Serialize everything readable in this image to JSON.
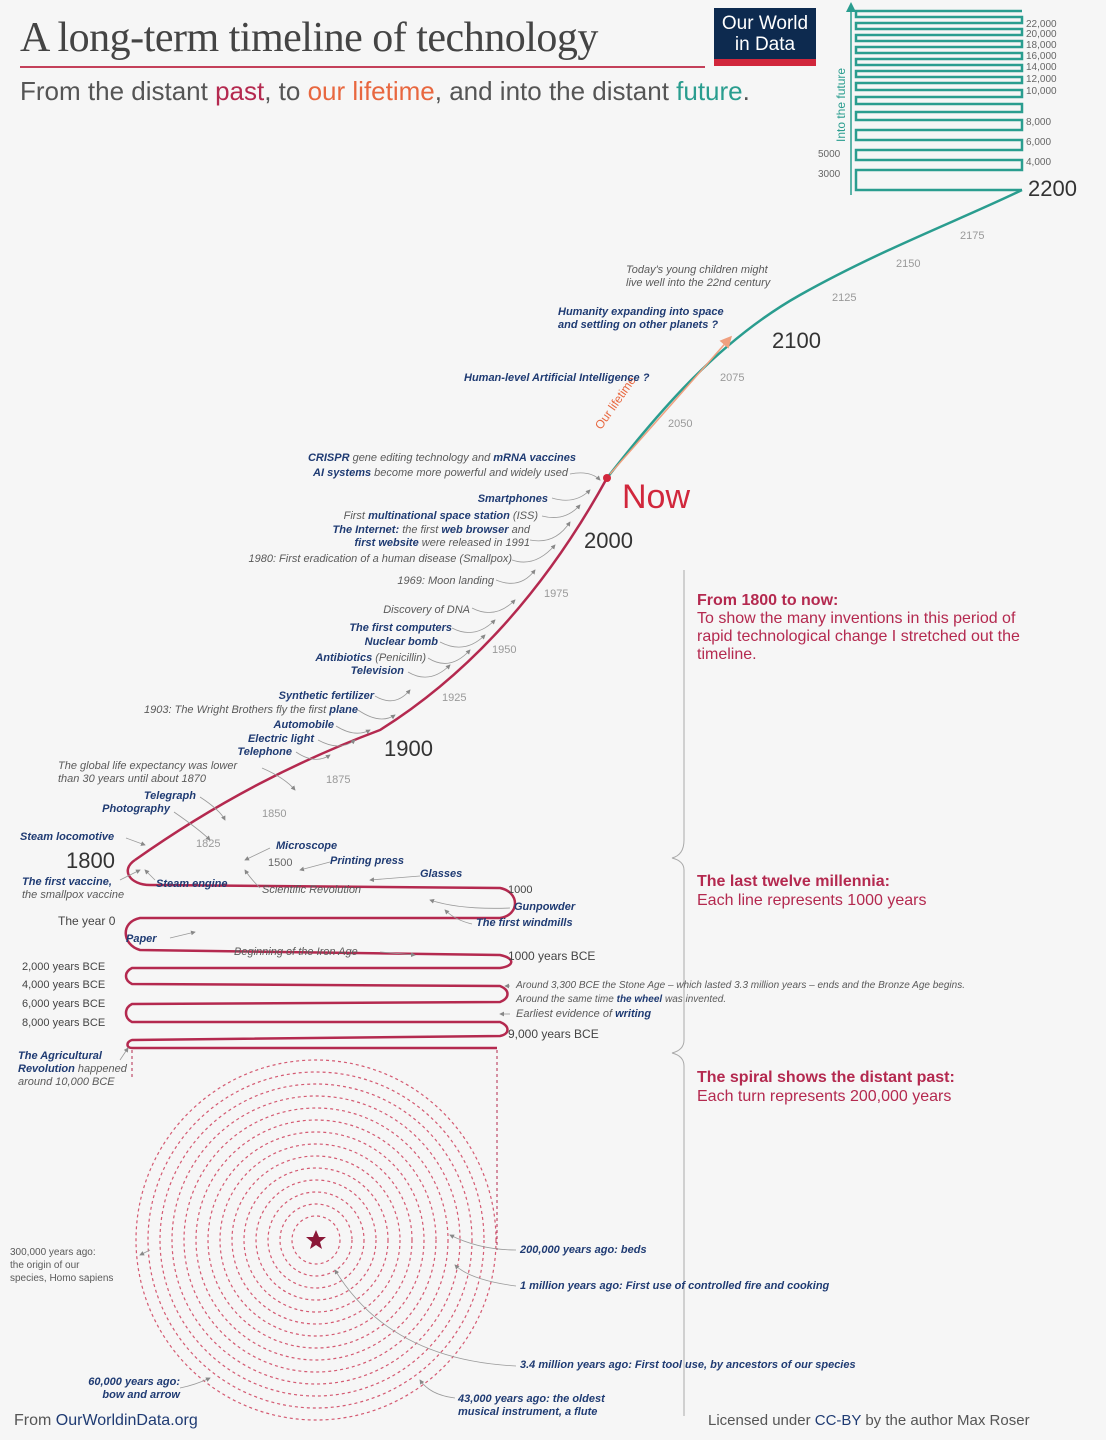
{
  "header": {
    "title": "A long-term timeline of technology",
    "subtitle_parts": [
      "From the distant ",
      "past",
      ", to ",
      "our lifetime",
      ", and into the distant ",
      "future",
      "."
    ],
    "logo_line1": "Our World",
    "logo_line2": "in Data"
  },
  "colors": {
    "past": "#b4294f",
    "lifetime": "#e8673f",
    "future": "#2a9d8f",
    "navy": "#1f3b73",
    "logo_bg": "#0d2a4f",
    "logo_red": "#d1273c"
  },
  "markers": {
    "now": "Now",
    "our_lifetime": "Our lifetime",
    "into_future": "Into the future",
    "y1800": "1800",
    "y1900": "1900",
    "y2000": "2000",
    "y2100": "2100",
    "y2200": "2200",
    "y1825": "1825",
    "y1850": "1850",
    "y1875": "1875",
    "y1925": "1925",
    "y1950": "1950",
    "y1975": "1975",
    "y2050": "2050",
    "y2075": "2075",
    "y2125": "2125",
    "y2150": "2150",
    "y2175": "2175",
    "y1500": "1500",
    "y3000": "3000",
    "y5000": "5000"
  },
  "future_scale": [
    "22,000",
    "20,000",
    "18,000",
    "16,000",
    "14,000",
    "12,000",
    "10,000",
    "8,000",
    "6,000",
    "4,000"
  ],
  "events": {
    "kids": [
      "Today's young children might",
      "live well into the 22nd century"
    ],
    "space": [
      "Humanity expanding into space",
      "and settling on other planets ?"
    ],
    "ai_human": "Human-level Artificial Intelligence ?",
    "crispr_a": "CRISPR",
    "crispr_b": " gene editing technology and ",
    "crispr_c": "mRNA vaccines",
    "ai_sys_a": "AI systems",
    "ai_sys_b": " become more powerful and widely used",
    "smartphones": "Smartphones",
    "iss_a": "First ",
    "iss_b": "multinational space station",
    "iss_c": " (ISS)",
    "internet_a": "The Internet:",
    "internet_b": " the first ",
    "internet_c": "web browser",
    "internet_d": " and",
    "internet_e": "first website",
    "internet_f": " were released in 1991",
    "smallpox_erad": "1980: First eradication of a human disease (Smallpox)",
    "moon": "1969: Moon landing",
    "dna": "Discovery of DNA",
    "computers": "The first computers",
    "nuclear": "Nuclear bomb",
    "antibiotics_a": "Antibiotics",
    "antibiotics_b": " (Penicillin)",
    "television": "Television",
    "fertilizer": "Synthetic fertilizer",
    "wright_a": "1903: The Wright Brothers fly the first ",
    "wright_b": "plane",
    "automobile": "Automobile",
    "electric": "Electric light",
    "telephone": "Telephone",
    "life_exp": [
      "The global life expectancy was lower",
      "than 30 years until about 1870"
    ],
    "telegraph": "Telegraph",
    "photography": "Photography",
    "steam_loco": "Steam locomotive",
    "vaccine_a": "The first vaccine,",
    "vaccine_b": "the smallpox vaccine",
    "steam_engine": "Steam engine",
    "microscope": "Microscope",
    "printing": "Printing press",
    "glasses": "Glasses",
    "sci_rev": "Scientific Revolution",
    "y1000": "1000",
    "gunpowder": "Gunpowder",
    "windmills": "The first windmills",
    "year0": "The year 0",
    "paper": "Paper",
    "iron_age": "Beginning of the Iron Age",
    "bce1000": "1000 years BCE",
    "bce2000": "2,000 years BCE",
    "bce4000": "4,000 years BCE",
    "bce6000": "6,000 years BCE",
    "bce8000": "8,000 years BCE",
    "bronze_a": "Around 3,300 BCE the Stone Age – which lasted 3.3 million years – ends and the Bronze Age begins.",
    "wheel_a": "Around the same time ",
    "wheel_b": "the wheel",
    "wheel_c": " was invented.",
    "writing_a": "Earliest evidence of ",
    "writing_b": "writing",
    "bce9000": "9,000 years BCE",
    "agri": [
      "The Agricultural",
      "Revolution",
      " happened",
      "around 10,000 BCE"
    ],
    "sapiens": [
      "300,000 years ago:",
      "the origin of our",
      "species, Homo sapiens"
    ],
    "beds": "200,000 years ago: beds",
    "fire": "1 million years ago: First use of controlled fire and cooking",
    "tools": "3.4 million years ago: First tool use, by ancestors of our species",
    "bow": [
      "60,000 years ago:",
      "bow and arrow"
    ],
    "flute": [
      "43,000 years ago: the oldest",
      "musical instrument, a flute"
    ]
  },
  "sections": {
    "s1_heading": "From 1800 to now:",
    "s1_text": "To show the many inventions in this period of rapid technological change I stretched out the timeline.",
    "s2_heading": "The last twelve millennia:",
    "s2_text": "Each line represents 1000 years",
    "s3_heading": "The spiral shows the distant past:",
    "s3_text": "Each turn represents 200,000 years"
  },
  "footer": {
    "source_prefix": "From ",
    "source_link": "OurWorldinData.org",
    "license_a": "Licensed under ",
    "license_b": "CC-BY",
    "license_c": " by the author Max Roser"
  }
}
